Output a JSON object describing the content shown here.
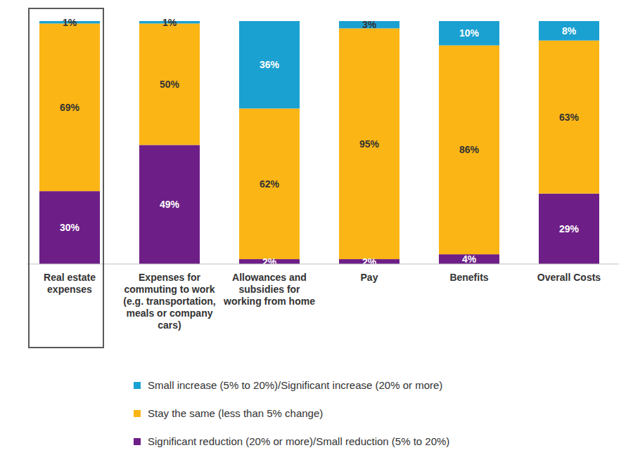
{
  "chart_data": {
    "type": "bar",
    "stacked": true,
    "data_labels": true,
    "tick_labels": "x",
    "legend": "bottom",
    "ylim": [
      0,
      100
    ],
    "categories": [
      "Real estate expenses",
      "Expenses for commuting to work (e.g. transportation, meals or company cars)",
      "Allowances and subsidies for working from home",
      "Pay",
      "Benefits",
      "Overall Costs"
    ],
    "series": [
      {
        "name": "Small increase (5% to 20%)/Significant increase (20% or more)",
        "color": "#1ba1d1",
        "values": [
          1,
          1,
          36,
          3,
          10,
          8
        ],
        "value_labels": [
          "1%",
          "1%",
          "36%",
          "3%",
          "10%",
          "8%"
        ]
      },
      {
        "name": "Stay the same (less than 5% change)",
        "color": "#fbb515",
        "values": [
          69,
          50,
          62,
          95,
          86,
          63
        ],
        "value_labels": [
          "69%",
          "50%",
          "62%",
          "95%",
          "86%",
          "63%"
        ]
      },
      {
        "name": "Significant reduction (20% or more)/Small reduction (5% to 20%)",
        "color": "#6d1f87",
        "values": [
          30,
          49,
          2,
          2,
          4,
          29
        ],
        "value_labels": [
          "30%",
          "49%",
          "2%",
          "2%",
          "4%",
          "29%"
        ]
      }
    ]
  }
}
